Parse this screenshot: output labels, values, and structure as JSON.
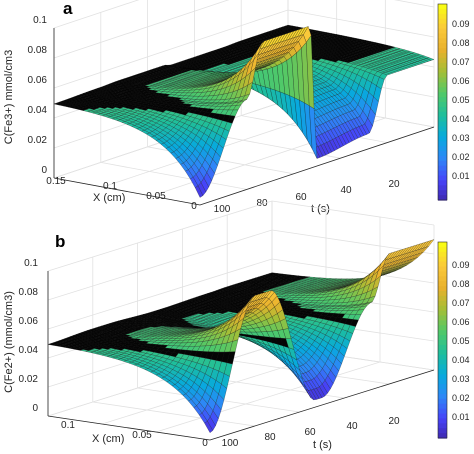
{
  "chart_data": [
    {
      "type": "surface",
      "panel_label": "a",
      "zlabel": "C(Fe3+) mmol/cm3",
      "xlabel": "X (cm)",
      "ylabel": "t (s)",
      "xlim": [
        0,
        0.15
      ],
      "tlim": [
        0,
        100
      ],
      "zlim": [
        0,
        0.1
      ],
      "x_ticks": [
        "0.15",
        "0.1",
        "0.05",
        "0"
      ],
      "t_ticks": [
        "100",
        "80",
        "60",
        "40",
        "20"
      ],
      "z_ticks": [
        "0",
        "0.02",
        "0.04",
        "0.06",
        "0.08",
        "0.1"
      ],
      "colorbar_ticks": [
        "0.01",
        "0.02",
        "0.03",
        "0.04",
        "0.05",
        "0.06",
        "0.07",
        "0.08",
        "0.09"
      ],
      "colorbar_range": [
        0,
        0.1
      ],
      "colormap": [
        "#3e26a8",
        "#4743f8",
        "#2e87f7",
        "#07aadd",
        "#1ebe9c",
        "#51c968",
        "#a4be36",
        "#e9b12d",
        "#fac93a",
        "#f9fb15"
      ],
      "grid": true,
      "baseline_concentration": 0.05,
      "profile_at_x0": [
        {
          "t": 0,
          "c": 0.045
        },
        {
          "t": 20,
          "c": 0.045
        },
        {
          "t": 28,
          "c": 0.01
        },
        {
          "t": 50,
          "c": 0.005
        },
        {
          "t": 53,
          "c": 0.095
        },
        {
          "t": 73,
          "c": 0.095
        },
        {
          "t": 80,
          "c": 0.06
        },
        {
          "t": 100,
          "c": 0.005
        }
      ]
    },
    {
      "type": "surface",
      "panel_label": "b",
      "zlabel": "C(Fe2+) (mmol/cm3)",
      "xlabel": "X (cm)",
      "ylabel": "t (s)",
      "xlim": [
        0,
        0.15
      ],
      "tlim": [
        0,
        100
      ],
      "zlim": [
        0,
        0.1
      ],
      "x_ticks": [
        "0.1",
        "0.05",
        "0"
      ],
      "t_ticks": [
        "100",
        "80",
        "60",
        "40",
        "20"
      ],
      "z_ticks": [
        "0",
        "0.02",
        "0.04",
        "0.06",
        "0.08",
        "0.1"
      ],
      "colorbar_ticks": [
        "0.01",
        "0.02",
        "0.03",
        "0.04",
        "0.05",
        "0.06",
        "0.07",
        "0.08",
        "0.09"
      ],
      "colorbar_range": [
        0,
        0.1
      ],
      "colormap": [
        "#3e26a8",
        "#4743f8",
        "#2e87f7",
        "#07aadd",
        "#1ebe9c",
        "#51c968",
        "#a4be36",
        "#e9b12d",
        "#fac93a",
        "#f9fb15"
      ],
      "grid": true,
      "baseline_concentration": 0.05,
      "profile_at_x0": [
        {
          "t": 0,
          "c": 0.09
        },
        {
          "t": 20,
          "c": 0.09
        },
        {
          "t": 28,
          "c": 0.06
        },
        {
          "t": 50,
          "c": 0.005
        },
        {
          "t": 53,
          "c": 0.005
        },
        {
          "t": 73,
          "c": 0.09
        },
        {
          "t": 80,
          "c": 0.09
        },
        {
          "t": 100,
          "c": 0.005
        }
      ]
    }
  ]
}
